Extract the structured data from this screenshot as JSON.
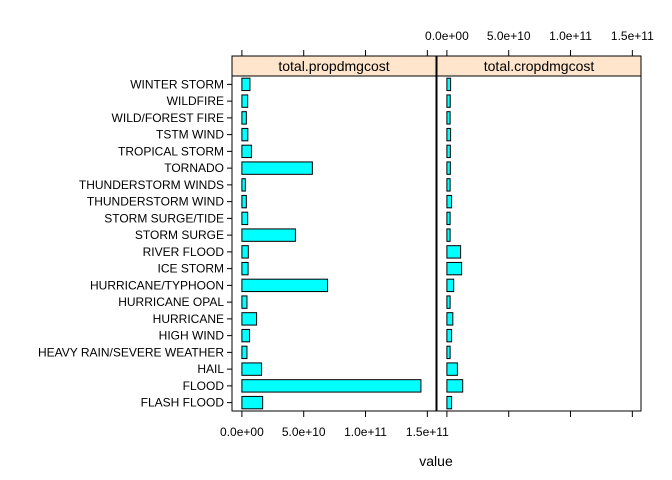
{
  "chart_data": {
    "type": "bar",
    "orientation": "horizontal",
    "layout": "lattice-panels",
    "xlabel": "value",
    "xlim": [
      -8000000000,
      157000000000
    ],
    "x_ticks": [
      0,
      50000000000,
      100000000000,
      150000000000
    ],
    "x_tick_labels": [
      "0.0e+00",
      "5.0e+10",
      "1.0e+11",
      "1.5e+11"
    ],
    "categories": [
      "FLASH FLOOD",
      "FLOOD",
      "HAIL",
      "HEAVY RAIN/SEVERE WEATHER",
      "HIGH WIND",
      "HURRICANE",
      "HURRICANE OPAL",
      "HURRICANE/TYPHOON",
      "ICE STORM",
      "RIVER FLOOD",
      "STORM SURGE",
      "STORM SURGE/TIDE",
      "THUNDERSTORM WIND",
      "THUNDERSTORM WINDS",
      "TORNADO",
      "TROPICAL STORM",
      "TSTM WIND",
      "WILD/FOREST FIRE",
      "WILDFIRE",
      "WINTER STORM"
    ],
    "series": [
      {
        "name": "total.propdmgcost",
        "values": [
          16800000000,
          144800000000,
          15900000000,
          4100000000,
          6200000000,
          11900000000,
          4100000000,
          69300000000,
          5000000000,
          5200000000,
          43300000000,
          4700000000,
          3600000000,
          2800000000,
          57000000000,
          7700000000,
          4800000000,
          3600000000,
          4700000000,
          6500000000
        ]
      },
      {
        "name": "total.cropdmgcost",
        "values": [
          3800000000,
          12800000000,
          8500000000,
          2600000000,
          3800000000,
          4800000000,
          2600000000,
          5500000000,
          11900000000,
          11100000000,
          2600000000,
          2600000000,
          3800000000,
          2600000000,
          2800000000,
          2800000000,
          3000000000,
          2600000000,
          2700000000,
          3000000000
        ]
      }
    ],
    "colors": {
      "bar_fill": "#00ffff",
      "bar_stroke": "#000000",
      "strip_fill": "#ffe5cc"
    }
  }
}
